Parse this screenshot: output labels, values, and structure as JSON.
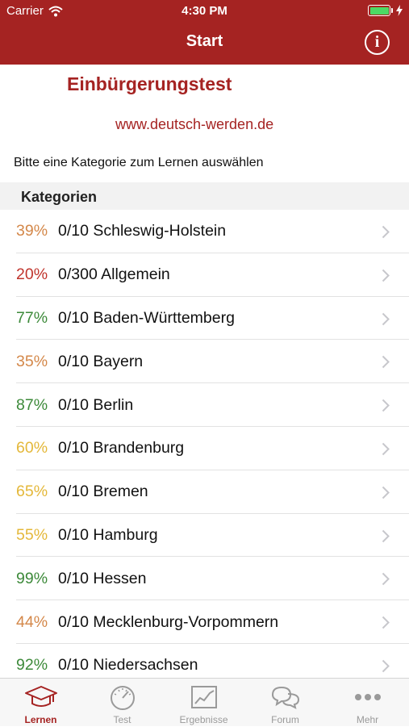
{
  "status_bar": {
    "carrier": "Carrier",
    "time": "4:30 PM"
  },
  "nav": {
    "title": "Start",
    "info_icon": "info-circle-icon"
  },
  "intro": {
    "title": "Einbürgerungstest",
    "link": "www.deutsch-werden.de",
    "instruction": "Bitte eine Kategorie zum Lernen auswählen"
  },
  "section": {
    "header": "Kategorien"
  },
  "categories": [
    {
      "percent": "39%",
      "label": "0/10  Schleswig-Holstein",
      "color": "#d4884a"
    },
    {
      "percent": "20%",
      "label": "0/300 Allgemein",
      "color": "#c0342c"
    },
    {
      "percent": "77%",
      "label": "0/10 Baden-Württemberg",
      "color": "#3d8a3a"
    },
    {
      "percent": "35%",
      "label": "0/10 Bayern",
      "color": "#d4884a"
    },
    {
      "percent": "87%",
      "label": "0/10 Berlin",
      "color": "#3d8a3a"
    },
    {
      "percent": "60%",
      "label": "0/10 Brandenburg",
      "color": "#e4b83a"
    },
    {
      "percent": "65%",
      "label": "0/10 Bremen",
      "color": "#e4b83a"
    },
    {
      "percent": "55%",
      "label": "0/10 Hamburg",
      "color": "#e4b83a"
    },
    {
      "percent": "99%",
      "label": "0/10 Hessen",
      "color": "#3d8a3a"
    },
    {
      "percent": "44%",
      "label": "0/10 Mecklenburg-Vorpommern",
      "color": "#d4884a"
    },
    {
      "percent": "92%",
      "label": "0/10 Niedersachsen",
      "color": "#3d8a3a"
    }
  ],
  "tabs": [
    {
      "label": "Lernen",
      "icon": "graduation-cap-icon",
      "active": true
    },
    {
      "label": "Test",
      "icon": "speedometer-icon",
      "active": false
    },
    {
      "label": "Ergebnisse",
      "icon": "chart-icon",
      "active": false
    },
    {
      "label": "Forum",
      "icon": "chat-bubbles-icon",
      "active": false
    },
    {
      "label": "Mehr",
      "icon": "more-dots-icon",
      "active": false
    }
  ],
  "colors": {
    "brand": "#a52322",
    "tab_inactive": "#9a9a9a"
  }
}
